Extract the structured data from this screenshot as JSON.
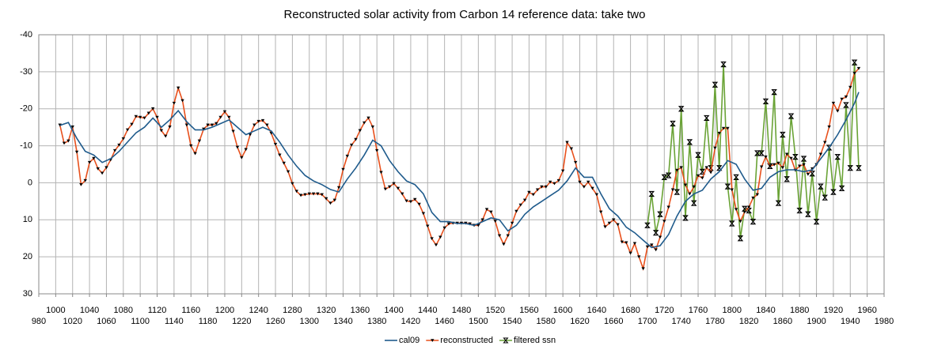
{
  "chart_data": {
    "type": "line",
    "title": "Reconstructed solar activity from Carbon 14 reference data: take two",
    "xlim": [
      980,
      1980
    ],
    "xticks": [
      980,
      1000,
      1020,
      1040,
      1060,
      1080,
      1100,
      1120,
      1140,
      1160,
      1180,
      1200,
      1220,
      1240,
      1260,
      1280,
      1300,
      1320,
      1340,
      1360,
      1380,
      1400,
      1420,
      1440,
      1460,
      1480,
      1500,
      1520,
      1540,
      1560,
      1580,
      1600,
      1620,
      1640,
      1660,
      1680,
      1700,
      1720,
      1740,
      1760,
      1780,
      1800,
      1820,
      1840,
      1860,
      1880,
      1900,
      1920,
      1940,
      1960,
      1980
    ],
    "ylim": [
      -40,
      30
    ],
    "yticks": [
      -40,
      -30,
      -20,
      -10,
      0,
      10,
      20,
      30
    ],
    "y_inverted": true,
    "grid": true,
    "legend": "bottom",
    "series": [
      {
        "name": "cal09",
        "color": "#1f5b8c",
        "marker": "none",
        "x": [
          1005,
          1015,
          1025,
          1035,
          1045,
          1055,
          1065,
          1075,
          1085,
          1095,
          1105,
          1115,
          1125,
          1135,
          1145,
          1155,
          1165,
          1175,
          1185,
          1195,
          1205,
          1215,
          1225,
          1235,
          1245,
          1255,
          1265,
          1275,
          1285,
          1295,
          1305,
          1315,
          1325,
          1335,
          1345,
          1355,
          1365,
          1375,
          1385,
          1395,
          1405,
          1415,
          1425,
          1435,
          1445,
          1455,
          1465,
          1475,
          1485,
          1495,
          1505,
          1515,
          1525,
          1535,
          1545,
          1555,
          1565,
          1575,
          1585,
          1595,
          1605,
          1615,
          1625,
          1635,
          1645,
          1655,
          1665,
          1675,
          1685,
          1695,
          1705,
          1715,
          1725,
          1735,
          1745,
          1755,
          1765,
          1775,
          1785,
          1795,
          1805,
          1815,
          1825,
          1835,
          1845,
          1855,
          1865,
          1875,
          1885,
          1895,
          1905,
          1915,
          1925,
          1935,
          1945,
          1950
        ],
        "values": [
          -15.5,
          -16.3,
          -12,
          -8.5,
          -7.5,
          -5.5,
          -6.5,
          -8.5,
          -11,
          -13.5,
          -15,
          -17.5,
          -15,
          -17,
          -19.5,
          -16.5,
          -14.3,
          -14.3,
          -15,
          -16,
          -17,
          -15,
          -13,
          -14,
          -15,
          -14,
          -11,
          -7.5,
          -4.5,
          -2,
          -0.5,
          0.5,
          1.8,
          2.5,
          -1,
          -4,
          -7.5,
          -11.5,
          -10,
          -6,
          -3,
          -0.5,
          0.5,
          3,
          8,
          10.5,
          10.5,
          11,
          11,
          11.5,
          10.5,
          9.5,
          10,
          13,
          11.5,
          8.5,
          6.5,
          5,
          3.5,
          2,
          -0.5,
          -4,
          -1.5,
          -1.5,
          3,
          7,
          9,
          12,
          13.5,
          15.5,
          17.5,
          17,
          14,
          9,
          5,
          3,
          2,
          -1,
          -3,
          -6,
          -5,
          -1,
          2,
          1.5,
          -1.5,
          -3,
          -3.5,
          -3.5,
          -3,
          -3.5,
          -6.5,
          -9.5,
          -13,
          -17,
          -21.5,
          -24.5
        ]
      },
      {
        "name": "reconstructed",
        "color": "#e8501c",
        "marker": "triangle",
        "x": [
          1005,
          1010,
          1015,
          1020,
          1025,
          1030,
          1035,
          1040,
          1045,
          1050,
          1055,
          1060,
          1065,
          1070,
          1075,
          1080,
          1085,
          1090,
          1095,
          1100,
          1105,
          1110,
          1115,
          1120,
          1125,
          1130,
          1135,
          1140,
          1145,
          1150,
          1155,
          1160,
          1165,
          1170,
          1175,
          1180,
          1185,
          1190,
          1195,
          1200,
          1205,
          1210,
          1215,
          1220,
          1225,
          1230,
          1235,
          1240,
          1245,
          1250,
          1255,
          1260,
          1265,
          1270,
          1275,
          1280,
          1285,
          1290,
          1295,
          1300,
          1305,
          1310,
          1315,
          1320,
          1325,
          1330,
          1335,
          1340,
          1345,
          1350,
          1355,
          1360,
          1365,
          1370,
          1375,
          1380,
          1385,
          1390,
          1395,
          1400,
          1405,
          1410,
          1415,
          1420,
          1425,
          1430,
          1435,
          1440,
          1445,
          1450,
          1455,
          1460,
          1465,
          1470,
          1475,
          1480,
          1485,
          1490,
          1495,
          1500,
          1505,
          1510,
          1515,
          1520,
          1525,
          1530,
          1535,
          1540,
          1545,
          1550,
          1555,
          1560,
          1565,
          1570,
          1575,
          1580,
          1585,
          1590,
          1595,
          1600,
          1605,
          1610,
          1615,
          1620,
          1625,
          1630,
          1635,
          1640,
          1645,
          1650,
          1655,
          1660,
          1665,
          1670,
          1675,
          1680,
          1685,
          1690,
          1695,
          1700,
          1705,
          1710,
          1715,
          1720,
          1725,
          1730,
          1735,
          1740,
          1745,
          1750,
          1755,
          1760,
          1765,
          1770,
          1775,
          1780,
          1785,
          1790,
          1795,
          1800,
          1805,
          1810,
          1815,
          1820,
          1825,
          1830,
          1835,
          1840,
          1845,
          1850,
          1855,
          1860,
          1865,
          1870,
          1875,
          1880,
          1885,
          1890,
          1895,
          1900,
          1905,
          1910,
          1915,
          1920,
          1925,
          1930,
          1935,
          1940,
          1945,
          1950
        ],
        "values": [
          -15.6,
          -10.7,
          -11.3,
          -15.1,
          -8.3,
          0.5,
          -0.6,
          -5.5,
          -6.6,
          -3.8,
          -2.6,
          -4.1,
          -6.2,
          -8.7,
          -10.2,
          -11.9,
          -14.3,
          -15.8,
          -17.9,
          -17.7,
          -17.5,
          -18.8,
          -20,
          -17.7,
          -14.1,
          -12.6,
          -15.1,
          -21.5,
          -25.6,
          -22.2,
          -15.6,
          -10,
          -7.9,
          -11.3,
          -14.5,
          -15.6,
          -15.6,
          -16,
          -17.7,
          -19.2,
          -17.7,
          -13.9,
          -9.6,
          -6.8,
          -9,
          -13,
          -15.6,
          -16.6,
          -16.8,
          -15.6,
          -13.4,
          -10.4,
          -7.5,
          -5.3,
          -3,
          0.2,
          2.3,
          3.4,
          3.2,
          3,
          3,
          3,
          3.2,
          4.3,
          5.5,
          4.7,
          1.3,
          -3.6,
          -7.2,
          -10.2,
          -11.7,
          -14.1,
          -16.2,
          -17.5,
          -15.1,
          -8.7,
          -2.8,
          1.7,
          1.1,
          0.2,
          1.5,
          3,
          4.9,
          5.1,
          4.5,
          5.8,
          8.3,
          11.7,
          15.1,
          16.8,
          14.7,
          12.2,
          11.1,
          10.9,
          10.9,
          10.9,
          10.9,
          11.1,
          11.5,
          11.5,
          10,
          7.2,
          7.9,
          10.4,
          14.3,
          16.6,
          14.3,
          10.9,
          7.7,
          6,
          4.7,
          2.6,
          3.2,
          1.9,
          1.1,
          1.1,
          -0.2,
          0.2,
          -0.6,
          -3.2,
          -10.9,
          -9.2,
          -5.5,
          -0.2,
          1.1,
          -0.2,
          1.5,
          3.2,
          7.9,
          11.9,
          10.9,
          10,
          11.3,
          16,
          16.2,
          19,
          16.4,
          20,
          23.2,
          17.3,
          16.8,
          18.1,
          14.7,
          10.4,
          6.6,
          1.9,
          -3.4,
          -4.1,
          0.6,
          3,
          1.1,
          -1.9,
          -1.3,
          -4.1,
          -2.8,
          -9.4,
          -13.4,
          -14.7,
          -14.7,
          1.9,
          7.2,
          10.4,
          7.9,
          6.6,
          4.1,
          3.2,
          -4.3,
          -7,
          -4.5,
          -4.9,
          -5.3,
          -4.1,
          -7.7,
          -6.6,
          -3.4,
          -4.5,
          -4.9,
          -2.3,
          -3.8,
          -4.9,
          -7.7,
          -10.9,
          -15.1,
          -21.5,
          -19.4,
          -22.6,
          -23.2,
          -25.8,
          -29.6,
          -30.9
        ]
      },
      {
        "name": "filtered ssn",
        "color": "#6aa336",
        "marker": "hourglass",
        "x": [
          1700,
          1705,
          1710,
          1715,
          1720,
          1725,
          1730,
          1735,
          1740,
          1745,
          1750,
          1755,
          1760,
          1765,
          1770,
          1775,
          1780,
          1785,
          1790,
          1795,
          1800,
          1805,
          1810,
          1815,
          1820,
          1825,
          1830,
          1835,
          1840,
          1845,
          1850,
          1855,
          1860,
          1865,
          1870,
          1875,
          1880,
          1885,
          1890,
          1895,
          1900,
          1905,
          1910,
          1915,
          1920,
          1925,
          1930,
          1935,
          1940,
          1945,
          1950
        ],
        "values": [
          11.5,
          3,
          13.5,
          8.5,
          -1.5,
          -2,
          -16,
          2.5,
          -20,
          9.5,
          -11,
          5.5,
          -7.5,
          -3,
          -17.5,
          -4,
          -26.5,
          -4,
          -32,
          1,
          11,
          -1.5,
          15,
          7,
          7.5,
          10.5,
          -8,
          -8,
          -22,
          -4.5,
          -24.5,
          5.5,
          -13,
          -1,
          -18,
          -7,
          7.5,
          -6.5,
          8.5,
          -2.5,
          10.5,
          1,
          4,
          -9.5,
          2.5,
          -7,
          1.5,
          -21,
          -4,
          -32.5,
          -4
        ]
      }
    ]
  }
}
